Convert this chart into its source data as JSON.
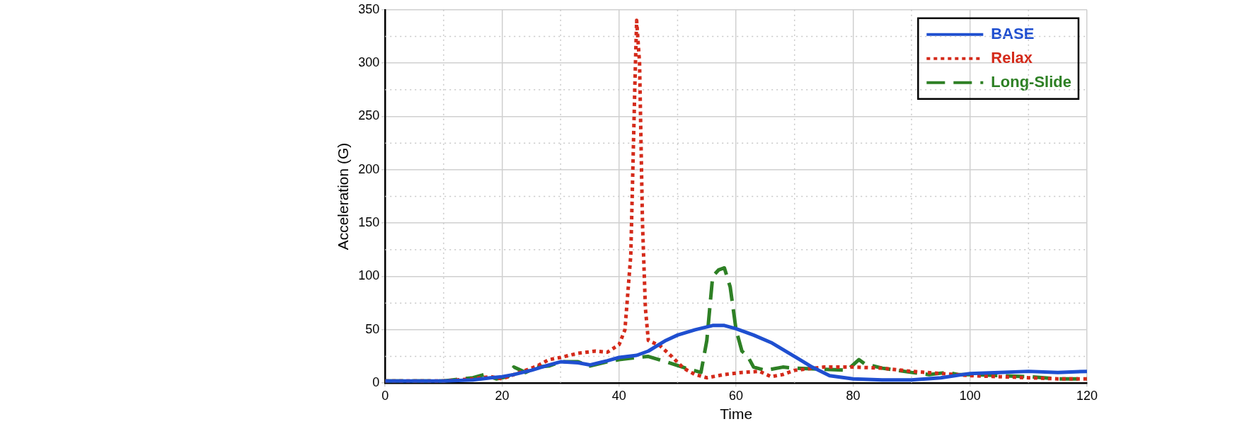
{
  "chart_data": {
    "type": "line",
    "xlabel": "Time",
    "ylabel": "Acceleration (G)",
    "xlim": [
      0,
      120
    ],
    "xticks": [
      0,
      20,
      40,
      60,
      80,
      100,
      120
    ],
    "ylim": [
      0,
      350
    ],
    "yticks": [
      0,
      50,
      100,
      150,
      200,
      250,
      300,
      350
    ],
    "grid": true,
    "legend": "top right",
    "marker": "none",
    "series": [
      {
        "name": "BASE",
        "color": "#1f4fd0",
        "line_style": "solid",
        "x": [
          0,
          10,
          15,
          18,
          20,
          22,
          25,
          28,
          30,
          33,
          35,
          38,
          40,
          43,
          45,
          48,
          50,
          53,
          56,
          58,
          60,
          63,
          66,
          70,
          73,
          76,
          80,
          85,
          90,
          95,
          100,
          105,
          110,
          115,
          120
        ],
        "values": [
          2,
          2,
          3,
          5,
          6,
          8,
          12,
          17,
          20,
          19,
          17,
          21,
          24,
          26,
          30,
          40,
          45,
          50,
          54,
          54,
          51,
          45,
          38,
          25,
          15,
          7,
          4,
          3,
          3,
          5,
          9,
          10,
          11,
          10,
          11
        ]
      },
      {
        "name": "Relax",
        "color": "#d42a1a",
        "line_style": "dotted",
        "x": [
          0,
          10,
          15,
          18,
          20,
          23,
          26,
          28,
          30,
          33,
          36,
          38,
          40,
          41,
          42,
          42.7,
          43,
          43.5,
          44,
          44.5,
          45,
          47,
          49,
          51,
          53,
          55,
          58,
          61,
          64,
          66,
          68,
          70,
          75,
          80,
          85,
          90,
          95,
          100,
          105,
          110,
          115,
          120
        ],
        "values": [
          2,
          2,
          4,
          6,
          4,
          10,
          16,
          22,
          24,
          28,
          30,
          29,
          36,
          50,
          120,
          280,
          340,
          300,
          150,
          70,
          40,
          35,
          25,
          14,
          8,
          5,
          8,
          10,
          11,
          6,
          8,
          12,
          15,
          15,
          14,
          11,
          9,
          7,
          6,
          5,
          4,
          4
        ]
      },
      {
        "name": "Long-Slide",
        "color": "#2e8025",
        "line_style": "dashed",
        "x": [
          0,
          10,
          15,
          17,
          19,
          21,
          22,
          24,
          26,
          28,
          30,
          33,
          35,
          38,
          40,
          43,
          45,
          48,
          52,
          54,
          55,
          56,
          57,
          58,
          59,
          60,
          61,
          62,
          63,
          65,
          68,
          70,
          75,
          79,
          81,
          82,
          85,
          90,
          93,
          96,
          98,
          100,
          105,
          110,
          115,
          120
        ],
        "values": [
          2,
          2,
          5,
          8,
          4,
          6,
          15,
          10,
          15,
          16,
          20,
          20,
          16,
          20,
          22,
          24,
          25,
          20,
          13,
          10,
          40,
          100,
          106,
          108,
          90,
          50,
          30,
          25,
          15,
          12,
          15,
          14,
          13,
          12,
          22,
          18,
          14,
          10,
          8,
          10,
          8,
          8,
          7,
          6,
          4,
          4
        ]
      }
    ]
  }
}
